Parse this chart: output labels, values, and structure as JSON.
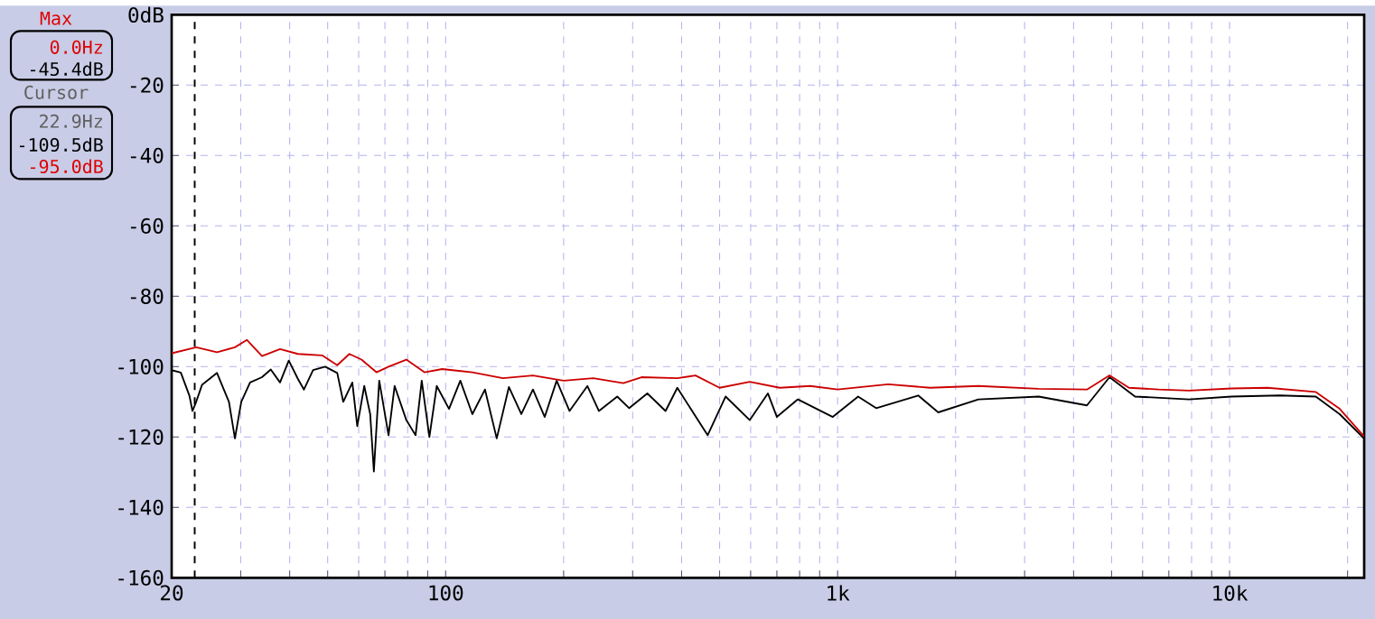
{
  "chart_data": {
    "type": "line",
    "annotations": [
      "Max",
      "0.0Hz",
      "-45.4dB",
      "Cursor",
      "22.9Hz",
      "-109.5dB",
      "-95.0dB"
    ],
    "series": [
      {
        "color": "#000000",
        "x": [
          20,
          21.1,
          22.2,
          22.6,
          23.1,
          23.9,
          26.1,
          28,
          29,
          30.1,
          31.7,
          34,
          35.8,
          37.8,
          39.8,
          42,
          43.5,
          45.9,
          49.3,
          52.9,
          54.8,
          57.8,
          59.5,
          62,
          64.2,
          65.6,
          67.7,
          71.5,
          74.1,
          79.4,
          83.8,
          86.9,
          90.9,
          94.9,
          102,
          109,
          117,
          126,
          135,
          145,
          156,
          167,
          179,
          192,
          207,
          230,
          246,
          274,
          294,
          327,
          364,
          390,
          466,
          518,
          597,
          664,
          700,
          792,
          972,
          1128,
          1254,
          1606,
          1806,
          2287,
          3259,
          4326,
          4940,
          5740,
          7884,
          10110,
          13430,
          16600,
          19100,
          22030
        ],
        "values": [
          -101,
          -101.7,
          -108.3,
          -112.6,
          -110,
          -105.2,
          -101.8,
          -110,
          -120.4,
          -110,
          -104.5,
          -103,
          -100.8,
          -104.5,
          -98.3,
          -103.5,
          -106.5,
          -101,
          -100,
          -101.8,
          -110,
          -104.5,
          -116.9,
          -105.5,
          -113.5,
          -129.8,
          -104,
          -119.5,
          -105.5,
          -115.2,
          -119.5,
          -104,
          -120,
          -105.5,
          -112,
          -104,
          -113.5,
          -106.5,
          -120.4,
          -105.8,
          -113.5,
          -106.5,
          -114.3,
          -104,
          -112.6,
          -105.5,
          -112.6,
          -108.5,
          -111.8,
          -107.6,
          -112.6,
          -106,
          -119.5,
          -108.5,
          -115.2,
          -107.6,
          -114.3,
          -109.3,
          -114.3,
          -108.5,
          -111.8,
          -108.2,
          -113,
          -109.3,
          -108.5,
          -111,
          -103,
          -108.5,
          -109.3,
          -108.5,
          -108.2,
          -108.5,
          -113.5,
          -120.4
        ]
      },
      {
        "color": "#cc0000",
        "x": [
          20,
          23.1,
          26.1,
          29,
          31.1,
          34,
          37.8,
          42,
          48.4,
          52.9,
          56.8,
          61,
          66.6,
          71.5,
          79.4,
          88.3,
          98,
          117,
          140,
          167,
          200,
          238,
          284,
          316,
          390,
          434,
          500,
          597,
          712,
          851,
          1000,
          1346,
          1723,
          2287,
          3259,
          4326,
          4940,
          5540,
          6607,
          7884,
          10110,
          12500,
          16600,
          19100,
          22030
        ],
        "values": [
          -96.2,
          -94.5,
          -95.9,
          -94.5,
          -92.4,
          -97,
          -95,
          -96.4,
          -96.8,
          -99.6,
          -96.4,
          -98,
          -101.6,
          -100,
          -98,
          -101.6,
          -100.7,
          -101.6,
          -103.3,
          -102.5,
          -104,
          -103.3,
          -104.7,
          -103,
          -103.3,
          -102.5,
          -106,
          -104.3,
          -106,
          -105.5,
          -106.5,
          -105,
          -106,
          -105.5,
          -106.3,
          -106.5,
          -102.5,
          -106,
          -106.5,
          -106.8,
          -106.2,
          -106,
          -107.2,
          -112,
          -119.8
        ]
      }
    ],
    "log": "x",
    "xlim": [
      20,
      22050
    ],
    "xticks": [
      20,
      {
        "value": 30,
        "label": null
      },
      {
        "value": 40,
        "label": null
      },
      {
        "value": 50,
        "label": null
      },
      {
        "value": 60,
        "label": null
      },
      {
        "value": 70,
        "label": null
      },
      {
        "value": 80,
        "label": null
      },
      {
        "value": 90,
        "label": null
      },
      100,
      {
        "value": 200,
        "label": null
      },
      {
        "value": 300,
        "label": null
      },
      {
        "value": 400,
        "label": null
      },
      {
        "value": 500,
        "label": null
      },
      {
        "value": 600,
        "label": null
      },
      {
        "value": 700,
        "label": null
      },
      {
        "value": 800,
        "label": null
      },
      {
        "value": 900,
        "label": null
      },
      {
        "value": 1000,
        "label": "1k"
      },
      {
        "value": 2000,
        "label": null
      },
      {
        "value": 3000,
        "label": null
      },
      {
        "value": 4000,
        "label": null
      },
      {
        "value": 5000,
        "label": null
      },
      {
        "value": 6000,
        "label": null
      },
      {
        "value": 7000,
        "label": null
      },
      {
        "value": 8000,
        "label": null
      },
      {
        "value": 9000,
        "label": null
      },
      {
        "value": 10000,
        "label": "10k"
      },
      {
        "value": 20000,
        "label": null
      }
    ],
    "ylim": [
      -160,
      0
    ],
    "yticks": [
      {
        "value": 0,
        "label": "0dB"
      },
      -20,
      -40,
      -60,
      -80,
      -100,
      -120,
      -140,
      -160
    ],
    "grid": true,
    "line_style": "solid",
    "marker": "none",
    "ref_lines": [
      {
        "axis": "x",
        "value": 22.9,
        "color": "#000000",
        "line_style": "dashed"
      }
    ]
  }
}
